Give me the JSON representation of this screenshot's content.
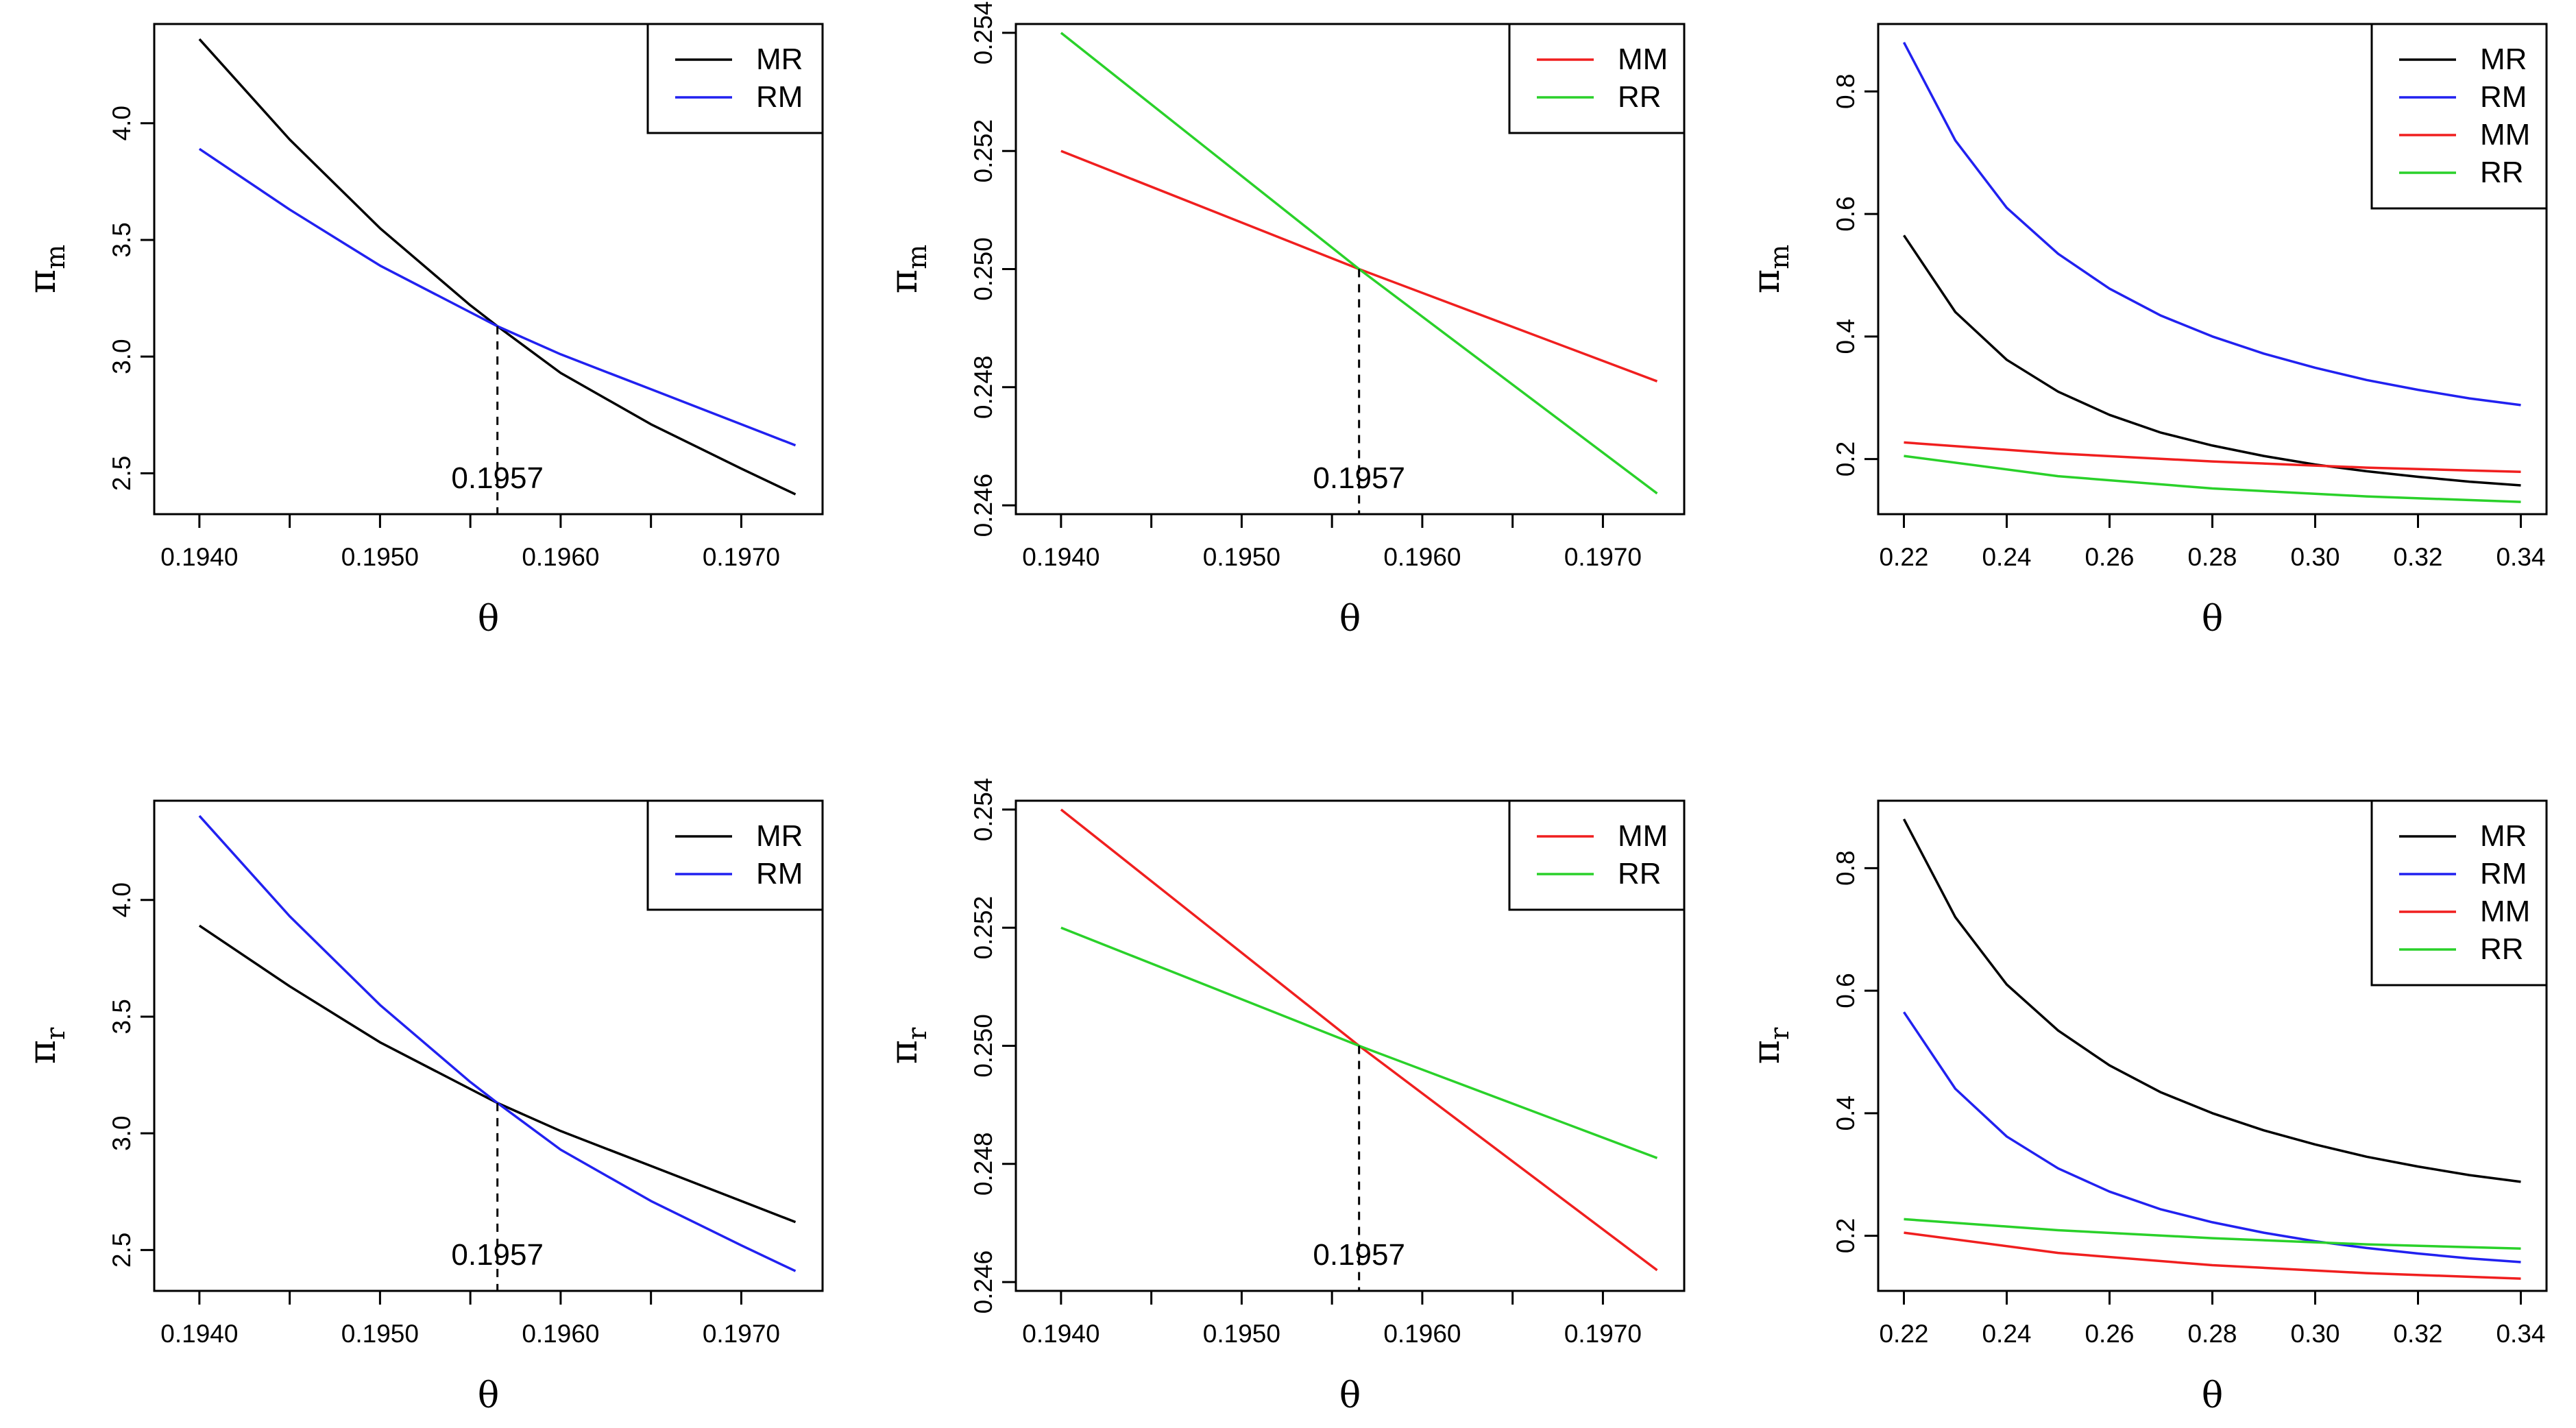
{
  "colors": {
    "MR": "#000000",
    "RM": "#2121f0",
    "MM": "#f01f1f",
    "RR": "#2ad12a",
    "axis": "#000000"
  },
  "panel_order": [
    "top-left",
    "top-middle",
    "top-right",
    "bottom-left",
    "bottom-middle",
    "bottom-right"
  ],
  "chart_data": [
    {
      "type": "line",
      "xlabel": "θ",
      "ylabel": {
        "base": "π",
        "sub": "m"
      },
      "xlim": [
        0.19375,
        0.19745
      ],
      "ylim": [
        2.325,
        4.425
      ],
      "xticks": [
        0.194,
        0.195,
        0.196,
        0.197
      ],
      "xtick_labels": [
        "0.1940",
        "0.1950",
        "0.1960",
        "0.1970"
      ],
      "xminor": [
        0.1945,
        0.1955,
        0.1965
      ],
      "yticks": [
        2.5,
        3.0,
        3.5,
        4.0
      ],
      "ytick_labels": [
        "2.5",
        "3.0",
        "3.5",
        "4.0"
      ],
      "legend": {
        "position": "top-right",
        "entries": [
          "MR",
          "RM"
        ]
      },
      "annotation": {
        "text": "0.1957",
        "x": 0.19565,
        "y": 3.13
      },
      "series": [
        {
          "name": "MR",
          "x": [
            0.194,
            0.1945,
            0.195,
            0.1955,
            0.19565,
            0.196,
            0.1965,
            0.197,
            0.1973
          ],
          "y": [
            4.36,
            3.93,
            3.55,
            3.22,
            3.13,
            2.93,
            2.71,
            2.52,
            2.41
          ]
        },
        {
          "name": "RM",
          "x": [
            0.194,
            0.1945,
            0.195,
            0.1955,
            0.19565,
            0.196,
            0.1965,
            0.197,
            0.1973
          ],
          "y": [
            3.89,
            3.63,
            3.39,
            3.19,
            3.13,
            3.01,
            2.86,
            2.71,
            2.62
          ]
        }
      ]
    },
    {
      "type": "line",
      "xlabel": "θ",
      "ylabel": {
        "base": "π",
        "sub": "m"
      },
      "xlim": [
        0.19375,
        0.19745
      ],
      "ylim": [
        0.24585,
        0.25415
      ],
      "xticks": [
        0.194,
        0.195,
        0.196,
        0.197
      ],
      "xtick_labels": [
        "0.1940",
        "0.1950",
        "0.1960",
        "0.1970"
      ],
      "xminor": [
        0.1945,
        0.1955,
        0.1965
      ],
      "yticks": [
        0.246,
        0.248,
        0.25,
        0.252,
        0.254
      ],
      "ytick_labels": [
        "0.246",
        "0.248",
        "0.250",
        "0.252",
        "0.254"
      ],
      "legend": {
        "position": "top-right",
        "entries": [
          "MM",
          "RR"
        ]
      },
      "annotation": {
        "text": "0.1957",
        "x": 0.19565,
        "y": 0.25
      },
      "series": [
        {
          "name": "MM",
          "x": [
            0.194,
            0.19565,
            0.1973
          ],
          "y": [
            0.252,
            0.25,
            0.2481
          ]
        },
        {
          "name": "RR",
          "x": [
            0.194,
            0.19565,
            0.1973
          ],
          "y": [
            0.254,
            0.25,
            0.2462
          ]
        }
      ]
    },
    {
      "type": "line",
      "xlabel": "θ",
      "ylabel": {
        "base": "π",
        "sub": "m"
      },
      "xlim": [
        0.215,
        0.345
      ],
      "ylim": [
        0.11,
        0.91
      ],
      "xticks": [
        0.22,
        0.24,
        0.26,
        0.28,
        0.3,
        0.32,
        0.34
      ],
      "xtick_labels": [
        "0.22",
        "0.24",
        "0.26",
        "0.28",
        "0.30",
        "0.32",
        "0.34"
      ],
      "xminor": [],
      "yticks": [
        0.2,
        0.4,
        0.6,
        0.8
      ],
      "ytick_labels": [
        "0.2",
        "0.4",
        "0.6",
        "0.8"
      ],
      "legend": {
        "position": "top-right",
        "entries": [
          "MR",
          "RM",
          "MM",
          "RR"
        ]
      },
      "series": [
        {
          "name": "MR",
          "x": [
            0.22,
            0.23,
            0.24,
            0.25,
            0.26,
            0.27,
            0.28,
            0.29,
            0.3,
            0.31,
            0.32,
            0.33,
            0.34
          ],
          "y": [
            0.565,
            0.44,
            0.362,
            0.31,
            0.272,
            0.243,
            0.222,
            0.205,
            0.191,
            0.18,
            0.171,
            0.163,
            0.157
          ]
        },
        {
          "name": "RM",
          "x": [
            0.22,
            0.23,
            0.24,
            0.25,
            0.26,
            0.27,
            0.28,
            0.29,
            0.3,
            0.31,
            0.32,
            0.33,
            0.34
          ],
          "y": [
            0.88,
            0.72,
            0.61,
            0.535,
            0.478,
            0.434,
            0.4,
            0.372,
            0.349,
            0.329,
            0.313,
            0.299,
            0.288
          ]
        },
        {
          "name": "MM",
          "x": [
            0.22,
            0.25,
            0.28,
            0.31,
            0.34
          ],
          "y": [
            0.227,
            0.209,
            0.196,
            0.186,
            0.179
          ]
        },
        {
          "name": "RR",
          "x": [
            0.22,
            0.25,
            0.28,
            0.31,
            0.34
          ],
          "y": [
            0.205,
            0.172,
            0.152,
            0.139,
            0.13
          ]
        }
      ]
    },
    {
      "type": "line",
      "xlabel": "θ",
      "ylabel": {
        "base": "π",
        "sub": "r"
      },
      "xlim": [
        0.19375,
        0.19745
      ],
      "ylim": [
        2.325,
        4.425
      ],
      "xticks": [
        0.194,
        0.195,
        0.196,
        0.197
      ],
      "xtick_labels": [
        "0.1940",
        "0.1950",
        "0.1960",
        "0.1970"
      ],
      "xminor": [
        0.1945,
        0.1955,
        0.1965
      ],
      "yticks": [
        2.5,
        3.0,
        3.5,
        4.0
      ],
      "ytick_labels": [
        "2.5",
        "3.0",
        "3.5",
        "4.0"
      ],
      "legend": {
        "position": "top-right",
        "entries": [
          "MR",
          "RM"
        ]
      },
      "annotation": {
        "text": "0.1957",
        "x": 0.19565,
        "y": 3.13
      },
      "series": [
        {
          "name": "MR",
          "x": [
            0.194,
            0.1945,
            0.195,
            0.1955,
            0.19565,
            0.196,
            0.1965,
            0.197,
            0.1973
          ],
          "y": [
            3.89,
            3.63,
            3.39,
            3.19,
            3.13,
            3.01,
            2.86,
            2.71,
            2.62
          ]
        },
        {
          "name": "RM",
          "x": [
            0.194,
            0.1945,
            0.195,
            0.1955,
            0.19565,
            0.196,
            0.1965,
            0.197,
            0.1973
          ],
          "y": [
            4.36,
            3.93,
            3.55,
            3.22,
            3.13,
            2.93,
            2.71,
            2.52,
            2.41
          ]
        }
      ]
    },
    {
      "type": "line",
      "xlabel": "θ",
      "ylabel": {
        "base": "π",
        "sub": "r"
      },
      "xlim": [
        0.19375,
        0.19745
      ],
      "ylim": [
        0.24585,
        0.25415
      ],
      "xticks": [
        0.194,
        0.195,
        0.196,
        0.197
      ],
      "xtick_labels": [
        "0.1940",
        "0.1950",
        "0.1960",
        "0.1970"
      ],
      "xminor": [
        0.1945,
        0.1955,
        0.1965
      ],
      "yticks": [
        0.246,
        0.248,
        0.25,
        0.252,
        0.254
      ],
      "ytick_labels": [
        "0.246",
        "0.248",
        "0.250",
        "0.252",
        "0.254"
      ],
      "legend": {
        "position": "top-right",
        "entries": [
          "MM",
          "RR"
        ]
      },
      "annotation": {
        "text": "0.1957",
        "x": 0.19565,
        "y": 0.25
      },
      "series": [
        {
          "name": "MM",
          "x": [
            0.194,
            0.19565,
            0.1973
          ],
          "y": [
            0.254,
            0.25,
            0.2462
          ]
        },
        {
          "name": "RR",
          "x": [
            0.194,
            0.19565,
            0.1973
          ],
          "y": [
            0.252,
            0.25,
            0.2481
          ]
        }
      ]
    },
    {
      "type": "line",
      "xlabel": "θ",
      "ylabel": {
        "base": "π",
        "sub": "r"
      },
      "xlim": [
        0.215,
        0.345
      ],
      "ylim": [
        0.11,
        0.91
      ],
      "xticks": [
        0.22,
        0.24,
        0.26,
        0.28,
        0.3,
        0.32,
        0.34
      ],
      "xtick_labels": [
        "0.22",
        "0.24",
        "0.26",
        "0.28",
        "0.30",
        "0.32",
        "0.34"
      ],
      "xminor": [],
      "yticks": [
        0.2,
        0.4,
        0.6,
        0.8
      ],
      "ytick_labels": [
        "0.2",
        "0.4",
        "0.6",
        "0.8"
      ],
      "legend": {
        "position": "top-right",
        "entries": [
          "MR",
          "RM",
          "MM",
          "RR"
        ]
      },
      "series": [
        {
          "name": "MR",
          "x": [
            0.22,
            0.23,
            0.24,
            0.25,
            0.26,
            0.27,
            0.28,
            0.29,
            0.3,
            0.31,
            0.32,
            0.33,
            0.34
          ],
          "y": [
            0.88,
            0.72,
            0.61,
            0.535,
            0.478,
            0.434,
            0.4,
            0.372,
            0.349,
            0.329,
            0.313,
            0.299,
            0.288
          ]
        },
        {
          "name": "RM",
          "x": [
            0.22,
            0.23,
            0.24,
            0.25,
            0.26,
            0.27,
            0.28,
            0.29,
            0.3,
            0.31,
            0.32,
            0.33,
            0.34
          ],
          "y": [
            0.565,
            0.44,
            0.362,
            0.31,
            0.272,
            0.243,
            0.222,
            0.205,
            0.191,
            0.18,
            0.171,
            0.163,
            0.157
          ]
        },
        {
          "name": "MM",
          "x": [
            0.22,
            0.25,
            0.28,
            0.31,
            0.34
          ],
          "y": [
            0.205,
            0.172,
            0.152,
            0.139,
            0.13
          ]
        },
        {
          "name": "RR",
          "x": [
            0.22,
            0.25,
            0.28,
            0.31,
            0.34
          ],
          "y": [
            0.227,
            0.209,
            0.196,
            0.186,
            0.179
          ]
        }
      ]
    }
  ]
}
